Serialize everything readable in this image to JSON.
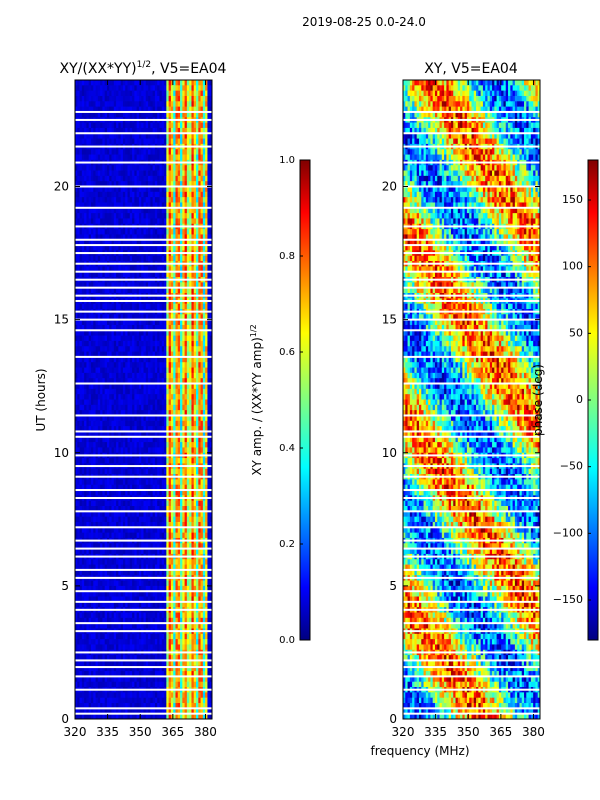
{
  "figure_title": "2019-08-25 0.0-24.0",
  "shared_xlabel": "frequency (MHz)",
  "colors": {
    "background_dark": "#000080",
    "gap_color": "#ffffff",
    "jet": [
      "#000080",
      "#0000ff",
      "#00ffff",
      "#ffff00",
      "#ff0000",
      "#800000"
    ]
  },
  "chart_data": [
    {
      "type": "heatmap",
      "title_main": "XY/(XX*YY)",
      "title_sup": "1/2",
      "title_tail": ", V5=EA04",
      "xlabel": "",
      "ylabel": "UT (hours)",
      "x_ticks": [
        "320",
        "335",
        "350",
        "365",
        "380"
      ],
      "x_tick_values": [
        320,
        335,
        350,
        365,
        380
      ],
      "xlim": [
        320,
        383
      ],
      "y_ticks": [
        "0",
        "5",
        "10",
        "15",
        "20"
      ],
      "y_tick_values": [
        0,
        5,
        10,
        15,
        20
      ],
      "ylim": [
        0,
        24
      ],
      "colorbar": {
        "label_main": "XY amp. / (XX*YY amp)",
        "label_sup": "1/2",
        "range": [
          0.0,
          1.0
        ],
        "ticks": [
          "0.0",
          "0.2",
          "0.4",
          "0.6",
          "0.8",
          "1.0"
        ],
        "tick_values": [
          0.0,
          0.2,
          0.4,
          0.6,
          0.8,
          1.0
        ],
        "colormap": "jet"
      },
      "gap_hours": [
        0.2,
        0.4,
        1.1,
        1.6,
        1.95,
        2.2,
        2.5,
        3.3,
        3.6,
        4.1,
        4.4,
        4.8,
        5.3,
        5.6,
        6.1,
        6.4,
        6.7,
        7.2,
        7.8,
        8.3,
        8.6,
        9.1,
        9.5,
        9.9,
        10.6,
        10.8,
        11.4,
        12.6,
        13.6,
        14.6,
        15.0,
        15.3,
        15.7,
        15.9,
        16.2,
        16.5,
        16.8,
        17.1,
        17.5,
        17.8,
        18.0,
        18.5,
        19.2,
        20.0,
        20.9,
        21.5,
        22.0,
        22.5,
        22.8
      ],
      "active_band_mhz": [
        362,
        381
      ]
    },
    {
      "type": "heatmap",
      "title": "XY, V5=EA04",
      "xlabel": "frequency (MHz)",
      "ylabel": "",
      "x_ticks": [
        "320",
        "335",
        "350",
        "365",
        "380"
      ],
      "x_tick_values": [
        320,
        335,
        350,
        365,
        380
      ],
      "xlim": [
        320,
        383
      ],
      "y_ticks": [
        "0",
        "5",
        "10",
        "15",
        "20"
      ],
      "y_tick_values": [
        0,
        5,
        10,
        15,
        20
      ],
      "ylim": [
        0,
        24
      ],
      "colorbar": {
        "label": "phase (deg)",
        "range": [
          -180,
          180
        ],
        "ticks": [
          "−150",
          "−100",
          "−50",
          "0",
          "50",
          "100",
          "150"
        ],
        "tick_values": [
          -150,
          -100,
          -50,
          0,
          50,
          100,
          150
        ],
        "colormap": "jet"
      },
      "gap_hours": [
        0.2,
        0.4,
        1.1,
        1.6,
        1.95,
        2.2,
        2.5,
        3.3,
        3.6,
        4.1,
        4.4,
        4.8,
        5.3,
        5.6,
        6.1,
        6.4,
        6.7,
        7.2,
        7.8,
        8.3,
        8.6,
        9.1,
        9.5,
        9.9,
        10.6,
        10.8,
        11.4,
        12.6,
        13.6,
        14.6,
        15.0,
        15.3,
        15.7,
        15.9,
        16.2,
        16.5,
        16.8,
        17.1,
        17.5,
        17.8,
        18.0,
        18.5,
        19.2,
        20.0,
        20.9,
        21.5,
        22.0,
        22.5,
        22.8
      ]
    }
  ]
}
